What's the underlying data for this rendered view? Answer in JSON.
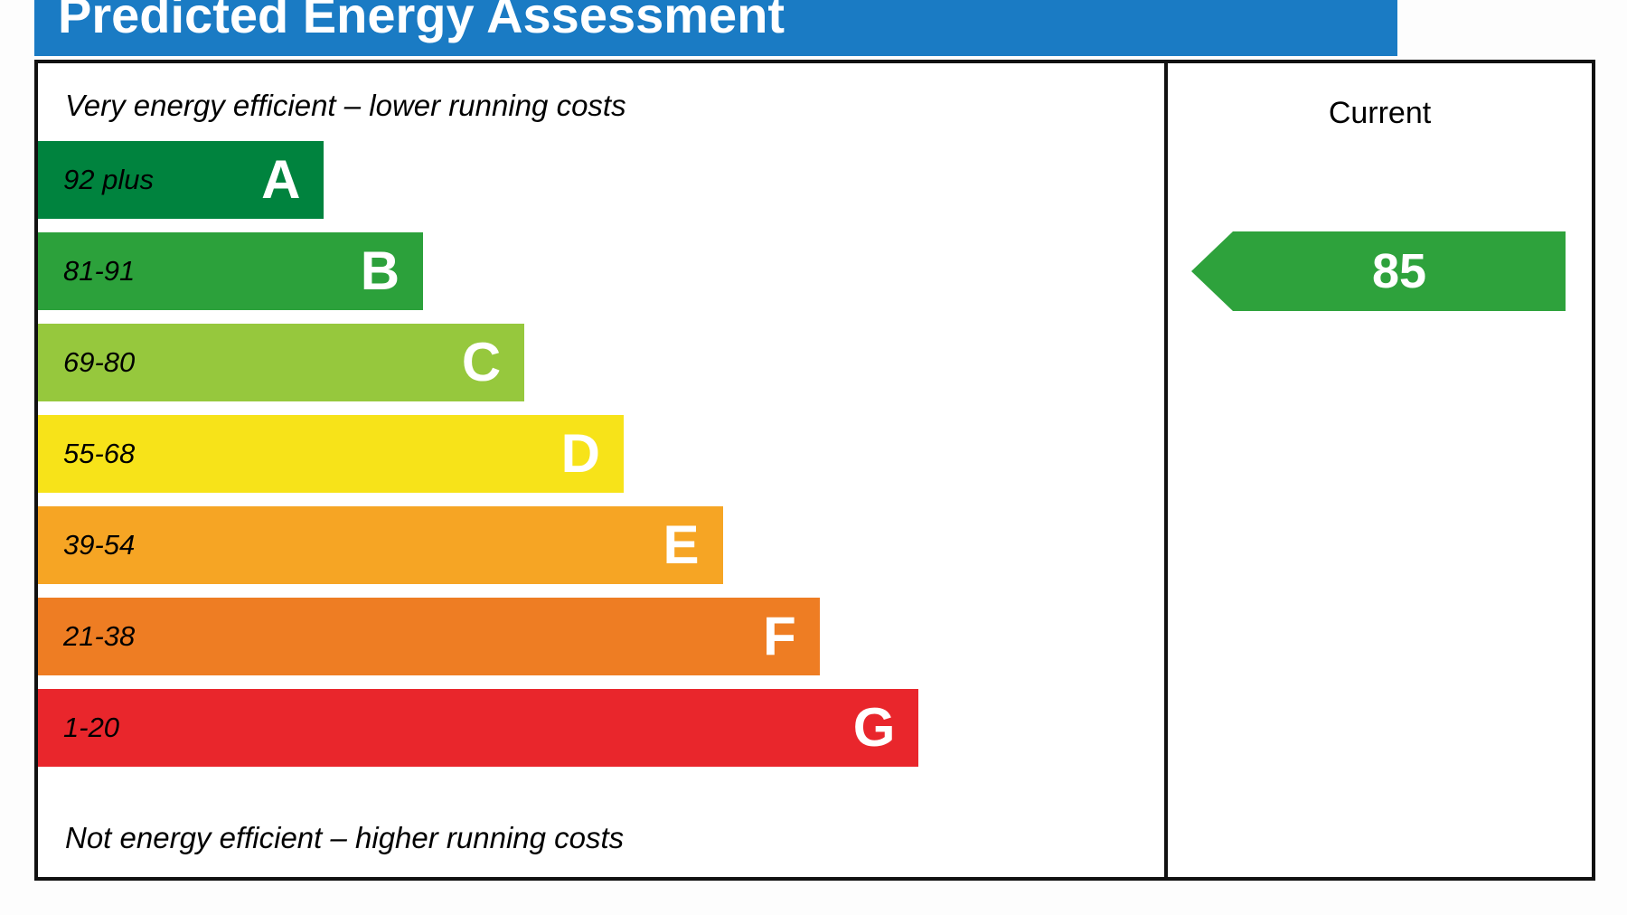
{
  "title": "Predicted Energy Assessment",
  "colors": {
    "header_blue": "#1a7bc4",
    "arrow_green": "#2ea23c",
    "border_black": "#111111"
  },
  "left_panel": {
    "top_caption": "Very energy efficient – lower running costs",
    "bottom_caption": "Not energy efficient – higher running costs"
  },
  "right_panel": {
    "header": "Current",
    "current_value": "85"
  },
  "chart_data": {
    "type": "bar",
    "title": "Predicted Energy Assessment",
    "bands": [
      {
        "letter": "A",
        "range": "92 plus",
        "color": "#00833e",
        "width_pct": 25.4
      },
      {
        "letter": "B",
        "range": "81-91",
        "color": "#2ca13b",
        "width_pct": 34.2
      },
      {
        "letter": "C",
        "range": "69-80",
        "color": "#96c83d",
        "width_pct": 43.2
      },
      {
        "letter": "D",
        "range": "55-68",
        "color": "#f7e319",
        "width_pct": 52.0
      },
      {
        "letter": "E",
        "range": "39-54",
        "color": "#f6a524",
        "width_pct": 60.8
      },
      {
        "letter": "F",
        "range": "21-38",
        "color": "#ee7d23",
        "width_pct": 69.4
      },
      {
        "letter": "G",
        "range": "1-20",
        "color": "#e9262c",
        "width_pct": 78.2
      }
    ],
    "current": {
      "value": 85,
      "band": "B"
    },
    "legend_position": "right-column",
    "grid": false
  }
}
